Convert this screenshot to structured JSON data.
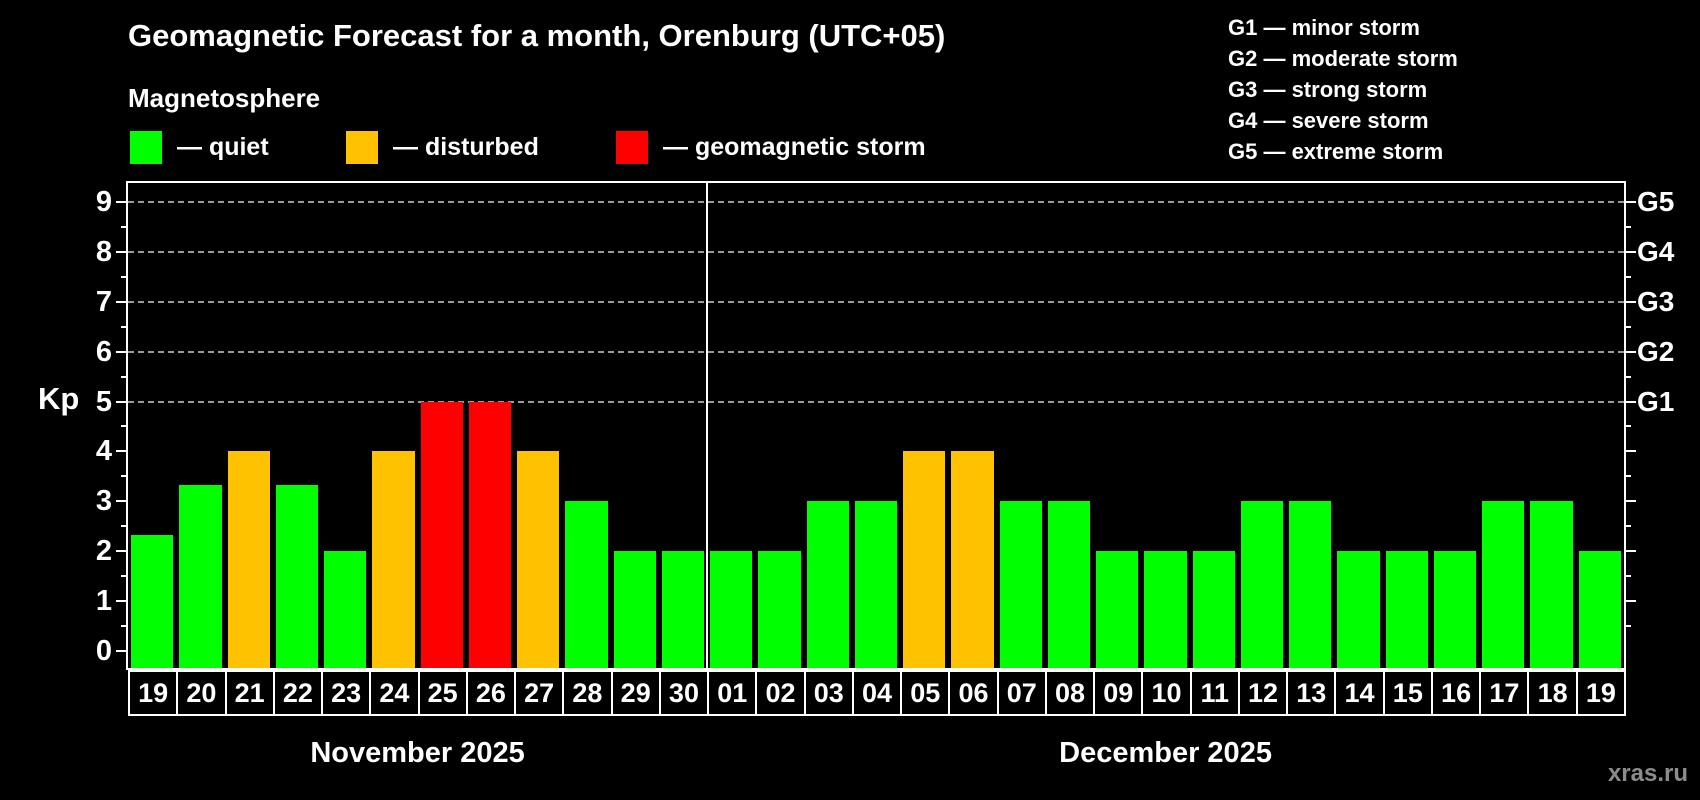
{
  "title": "Geomagnetic Forecast for a month, Orenburg (UTC+05)",
  "subtitle": "Magnetosphere",
  "legend": {
    "quiet": "— quiet",
    "disturbed": "— disturbed",
    "storm": "— geomagnetic storm"
  },
  "g_scale_legend": [
    "G1 — minor storm",
    "G2 — moderate storm",
    "G3 — strong storm",
    "G4 — severe storm",
    "G5 — extreme storm"
  ],
  "axis": {
    "y_label": "Kp",
    "y_ticks": [
      "0",
      "1",
      "2",
      "3",
      "4",
      "5",
      "6",
      "7",
      "8",
      "9"
    ]
  },
  "watermark": "xras.ru",
  "colors": {
    "quiet": "#00ff00",
    "disturbed": "#ffc200",
    "storm": "#ff0000",
    "gridline": "#9a9a9a",
    "axis": "#ffffff",
    "background": "#000000"
  },
  "chart_data": {
    "type": "bar",
    "title": "Geomagnetic Forecast for a month, Orenburg (UTC+05)",
    "xlabel": "",
    "ylabel": "Kp",
    "ylim": [
      0,
      9
    ],
    "grid": "dashed horizontal at Kp 5-9",
    "gridlines_at": [
      5,
      6,
      7,
      8,
      9
    ],
    "right_axis_labels": [
      {
        "kp": 5,
        "label": "G1"
      },
      {
        "kp": 6,
        "label": "G2"
      },
      {
        "kp": 7,
        "label": "G3"
      },
      {
        "kp": 8,
        "label": "G4"
      },
      {
        "kp": 9,
        "label": "G5"
      }
    ],
    "sections": [
      {
        "label": "November 2025",
        "days": 12
      },
      {
        "label": "December 2025",
        "days": 19
      }
    ],
    "categories": [
      "19",
      "20",
      "21",
      "22",
      "23",
      "24",
      "25",
      "26",
      "27",
      "28",
      "29",
      "30",
      "01",
      "02",
      "03",
      "04",
      "05",
      "06",
      "07",
      "08",
      "09",
      "10",
      "11",
      "12",
      "13",
      "14",
      "15",
      "16",
      "17",
      "18",
      "19"
    ],
    "values": [
      2.33,
      3.33,
      4,
      3.33,
      2,
      4,
      5,
      5,
      4,
      3,
      2,
      2,
      2,
      2,
      3,
      3,
      4,
      4,
      3,
      3,
      2,
      2,
      2,
      3,
      3,
      2,
      2,
      2,
      3,
      3,
      2
    ],
    "statuses": [
      "quiet",
      "quiet",
      "disturbed",
      "quiet",
      "quiet",
      "disturbed",
      "storm",
      "storm",
      "disturbed",
      "quiet",
      "quiet",
      "quiet",
      "quiet",
      "quiet",
      "quiet",
      "quiet",
      "disturbed",
      "disturbed",
      "quiet",
      "quiet",
      "quiet",
      "quiet",
      "quiet",
      "quiet",
      "quiet",
      "quiet",
      "quiet",
      "quiet",
      "quiet",
      "quiet",
      "quiet"
    ]
  }
}
